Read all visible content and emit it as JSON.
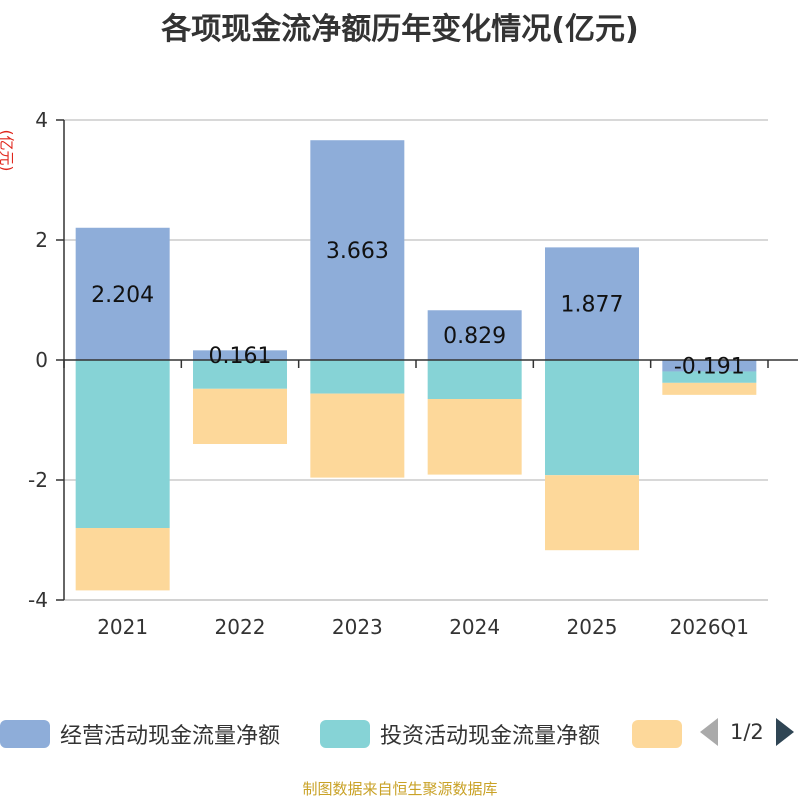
{
  "chart_data": {
    "type": "bar",
    "stacked": true,
    "title": "各项现金流净额历年变化情况(亿元)",
    "ylabel": "(亿元)",
    "ylim": [
      -4,
      4
    ],
    "yticks": [
      4,
      2,
      0,
      -2,
      -4
    ],
    "categories": [
      "2021",
      "2022",
      "2023",
      "2024",
      "2025",
      "2026Q1"
    ],
    "series": [
      {
        "name": "经营活动现金流量净额",
        "color": "#8eadd9",
        "values": [
          2.204,
          0.161,
          3.663,
          0.829,
          1.877,
          -0.191
        ],
        "labels": [
          "2.204",
          "0.161",
          "3.663",
          "0.829",
          "1.877",
          "-0.191"
        ]
      },
      {
        "name": "投资活动现金流量净额",
        "color": "#86d3d6",
        "values": [
          -2.8,
          -0.48,
          -0.56,
          -0.65,
          -1.92,
          -0.19
        ]
      },
      {
        "name": "",
        "color": "#fdd89a",
        "values": [
          -1.04,
          -0.92,
          -1.4,
          -1.26,
          -1.25,
          -0.2
        ]
      }
    ],
    "legend_position": "bottom",
    "grid": true
  },
  "legend": {
    "pager": "1/2"
  },
  "source_note": "制图数据来自恒生聚源数据库"
}
